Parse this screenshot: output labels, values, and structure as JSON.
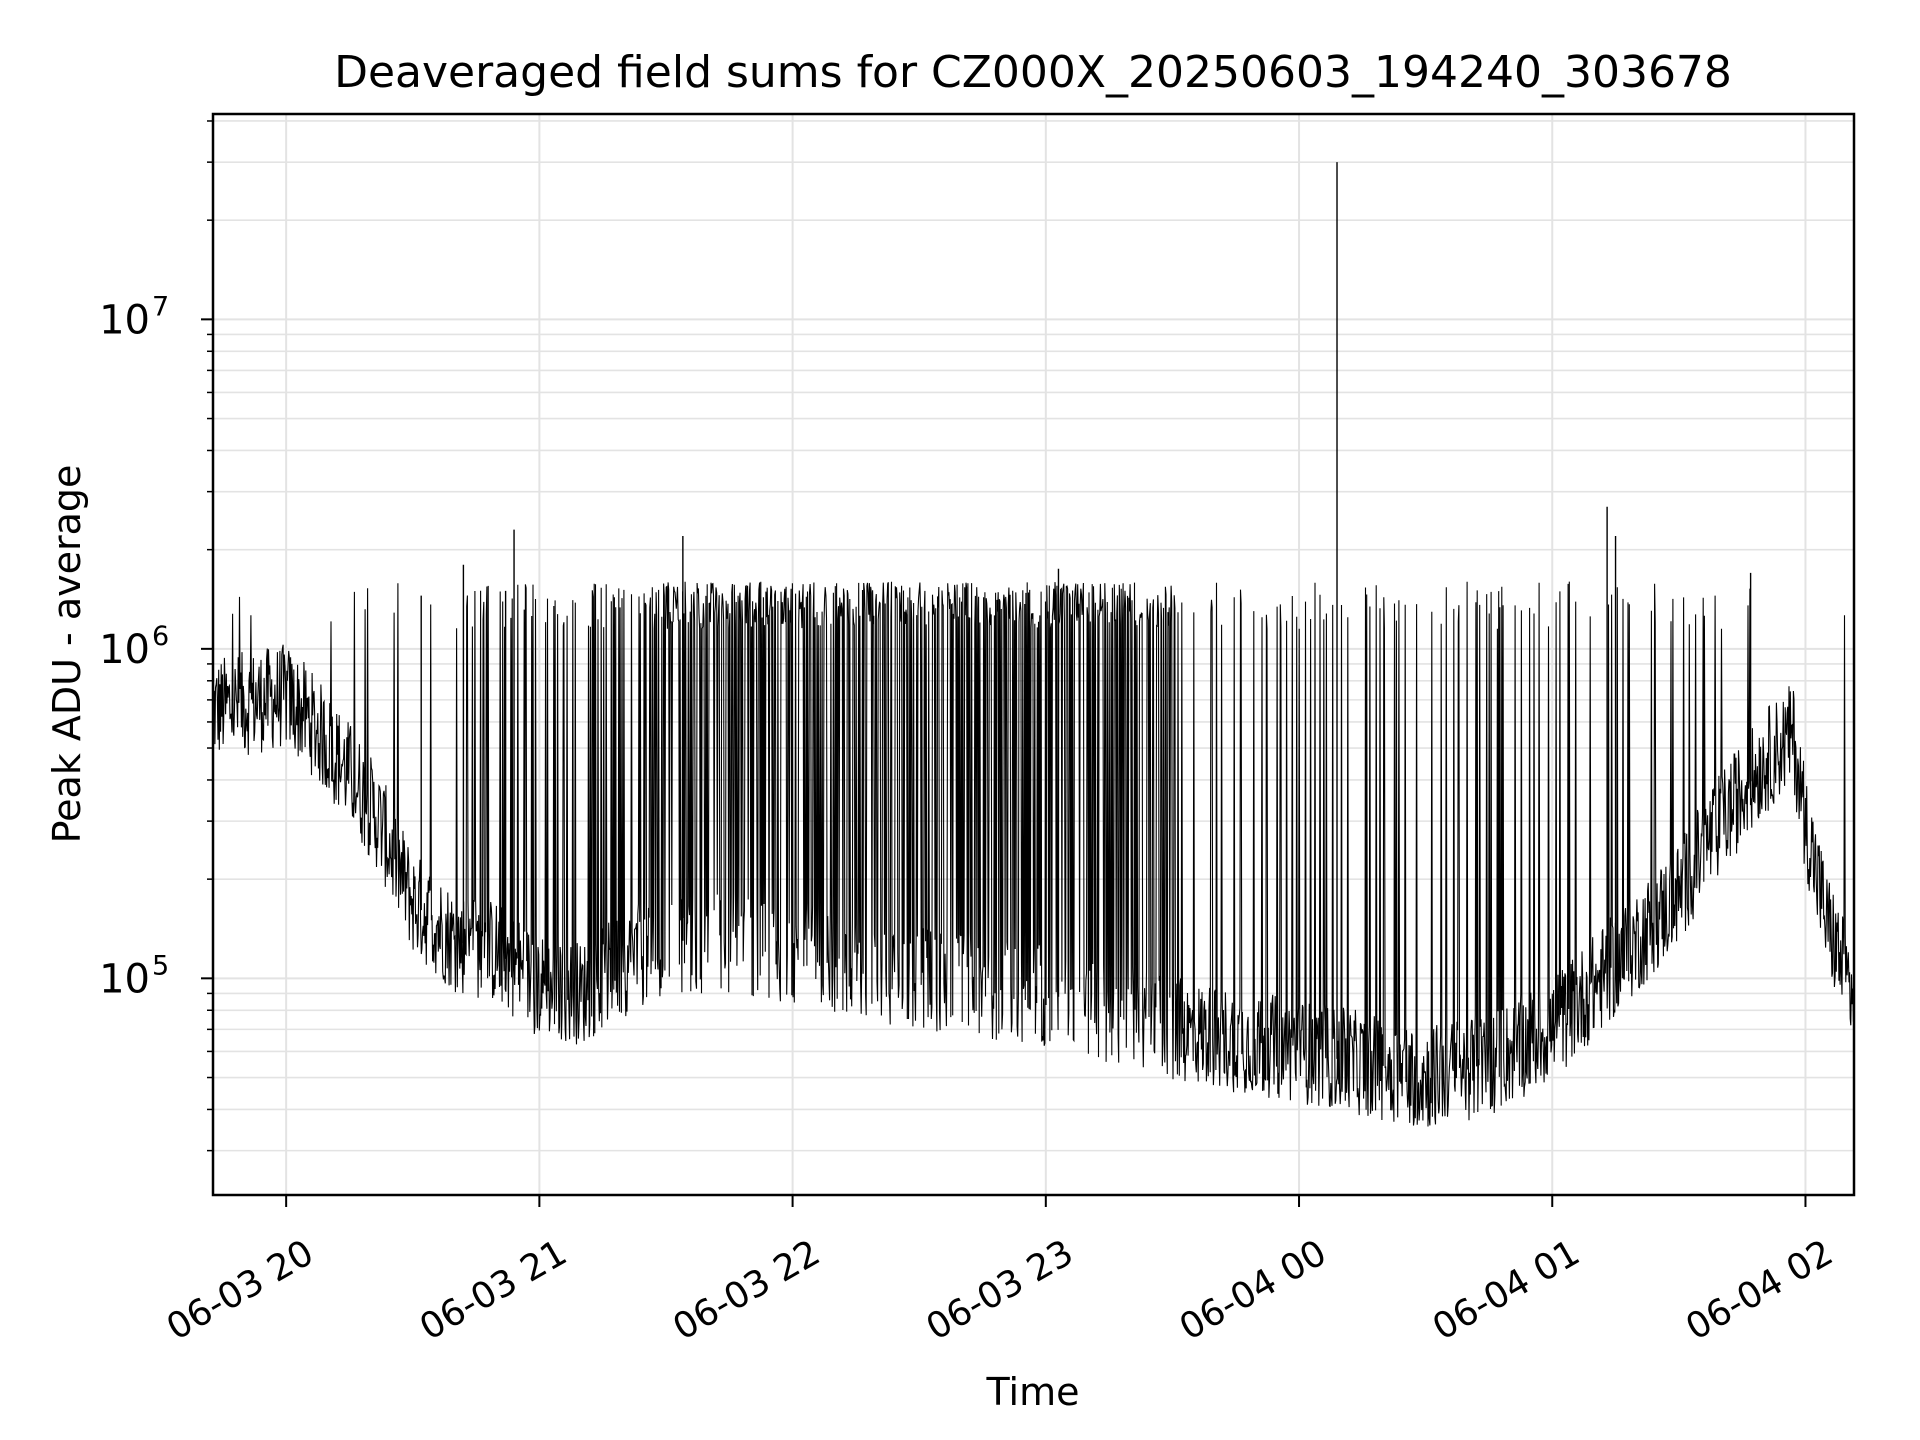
{
  "chart_data": {
    "type": "line",
    "title": "Deaveraged field sums for CZ000X_20250603_194240_303678",
    "xlabel": "Time",
    "ylabel": "Peak ADU - average",
    "yscale": "log",
    "ylim": [
      22000,
      42000000
    ],
    "xlim": [
      "2025-06-03 19:42:40",
      "2025-06-04 02:11:30"
    ],
    "grid": true,
    "legend": "none",
    "line_color": "#000000",
    "x_ticks": [
      {
        "label": "06-03 20",
        "time": "2025-06-03 20:00"
      },
      {
        "label": "06-03 21",
        "time": "2025-06-03 21:00"
      },
      {
        "label": "06-03 22",
        "time": "2025-06-03 22:00"
      },
      {
        "label": "06-03 23",
        "time": "2025-06-03 23:00"
      },
      {
        "label": "06-04 00",
        "time": "2025-06-04 00:00"
      },
      {
        "label": "06-04 01",
        "time": "2025-06-04 01:00"
      },
      {
        "label": "06-04 02",
        "time": "2025-06-04 02:00"
      }
    ],
    "y_ticks": [
      {
        "base": "10",
        "exp": "5",
        "value": 100000
      },
      {
        "base": "10",
        "exp": "6",
        "value": 1000000
      },
      {
        "base": "10",
        "exp": "7",
        "value": 10000000
      }
    ],
    "baseline": {
      "x": [
        "2025-06-03 19:42",
        "2025-06-03 20:00",
        "2025-06-03 20:05",
        "2025-06-03 20:15",
        "2025-06-03 20:22",
        "2025-06-03 20:30",
        "2025-06-03 20:40",
        "2025-06-03 20:50",
        "2025-06-03 21:00",
        "2025-06-03 21:10",
        "2025-06-03 21:20",
        "2025-06-03 21:30",
        "2025-06-03 21:45",
        "2025-06-03 22:00",
        "2025-06-03 22:15",
        "2025-06-03 22:30",
        "2025-06-03 22:45",
        "2025-06-03 23:00",
        "2025-06-03 23:15",
        "2025-06-03 23:30",
        "2025-06-03 23:45",
        "2025-06-04 00:00",
        "2025-06-04 00:15",
        "2025-06-04 00:30",
        "2025-06-04 00:45",
        "2025-06-04 01:00",
        "2025-06-04 01:15",
        "2025-06-04 01:30",
        "2025-06-04 01:37",
        "2025-06-04 01:50",
        "2025-06-04 01:57",
        "2025-06-04 02:00",
        "2025-06-04 02:05",
        "2025-06-04 02:11"
      ],
      "y": [
        650000,
        720000,
        620000,
        420000,
        300000,
        170000,
        130000,
        120000,
        95000,
        90000,
        110000,
        130000,
        130000,
        120000,
        110000,
        100000,
        95000,
        90000,
        80000,
        70000,
        65000,
        60000,
        55000,
        50000,
        55000,
        70000,
        110000,
        180000,
        260000,
        450000,
        550000,
        300000,
        150000,
        90000
      ]
    },
    "spikes": [
      {
        "x": "2025-06-03 20:32",
        "y": 1450000
      },
      {
        "x": "2025-06-03 20:42",
        "y": 1800000
      },
      {
        "x": "2025-06-03 20:52",
        "y": 1500000
      },
      {
        "x": "2025-06-03 20:54",
        "y": 2300000
      },
      {
        "x": "2025-06-03 21:34",
        "y": 2200000
      },
      {
        "x": "2025-06-03 23:03",
        "y": 1750000
      },
      {
        "x": "2025-06-04 00:09",
        "y": 30000000
      },
      {
        "x": "2025-06-04 01:13",
        "y": 2700000
      },
      {
        "x": "2025-06-04 01:15",
        "y": 2200000
      },
      {
        "x": "2025-06-04 01:47",
        "y": 1700000
      }
    ]
  }
}
